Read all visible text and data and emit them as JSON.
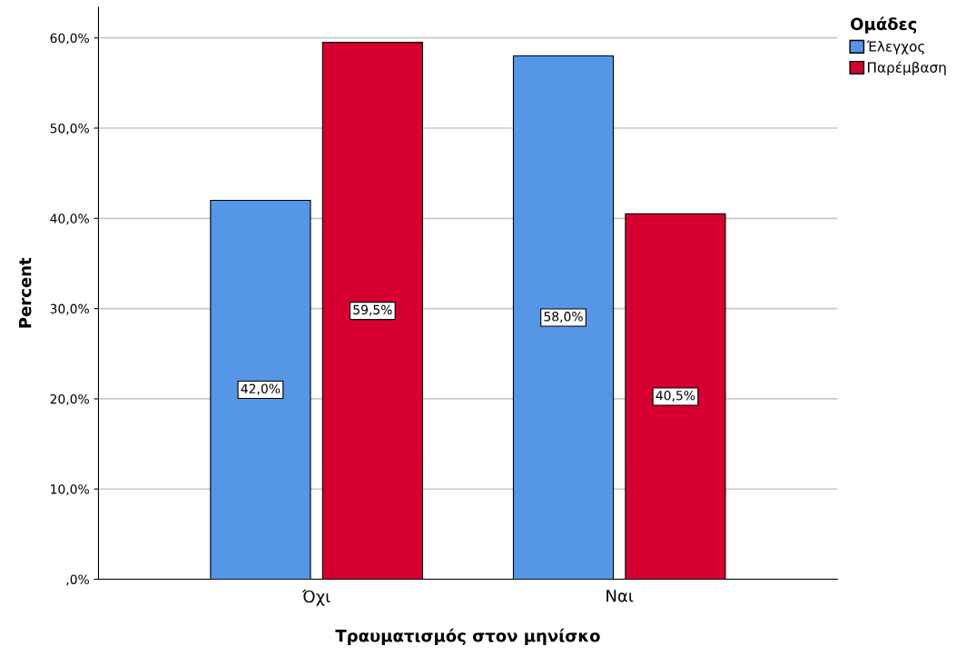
{
  "chart_data": {
    "type": "bar",
    "xlabel": "Τραυματισμός στον μηνίσκο",
    "ylabel": "Percent",
    "legend_title": "Ομάδες",
    "categories": [
      "Όχι",
      "Ναι"
    ],
    "series": [
      {
        "name": "Έλεγχος",
        "color": "#5596e6",
        "values": [
          42.0,
          58.0
        ],
        "value_labels": [
          "42,0%",
          "58,0%"
        ]
      },
      {
        "name": "Παρέμβαση",
        "color": "#d5002f",
        "values": [
          59.5,
          40.5
        ],
        "value_labels": [
          "59,5%",
          "40,5%"
        ]
      }
    ],
    "ylim": [
      0,
      63.4
    ],
    "yticks": [
      {
        "value": 0,
        "label": ",0%"
      },
      {
        "value": 10,
        "label": "10,0%"
      },
      {
        "value": 20,
        "label": "20,0%"
      },
      {
        "value": 30,
        "label": "30,0%"
      },
      {
        "value": 40,
        "label": "40,0%"
      },
      {
        "value": 50,
        "label": "50,0%"
      },
      {
        "value": 60,
        "label": "60,0%"
      }
    ],
    "grid": "y",
    "legend": "top right"
  }
}
